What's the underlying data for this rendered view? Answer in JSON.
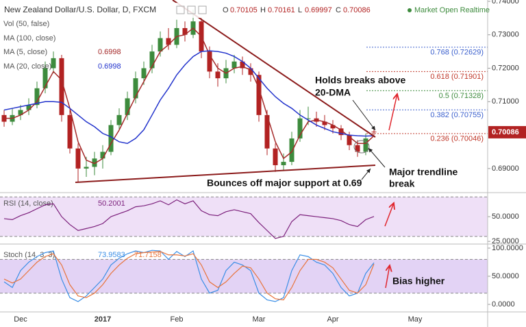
{
  "header": {
    "title": "New Zealand Dollar/U.S. Dollar, D, FXCM",
    "ohlc_labels": [
      "O",
      "H",
      "L",
      "C"
    ],
    "status": "Market Open Realtime"
  },
  "indicators": [
    "Vol (50, false)",
    "MA (100, close)"
  ],
  "chart_data": [
    {
      "type": "candlestick",
      "categories": [
        null,
        null,
        "Dec",
        null,
        null,
        null,
        null,
        null,
        null,
        null,
        null,
        null,
        "2017",
        null,
        null,
        null,
        null,
        null,
        null,
        null,
        null,
        "Feb",
        null,
        null,
        null,
        null,
        null,
        null,
        null,
        null,
        null,
        "Mar",
        null,
        null,
        null,
        null,
        null,
        null,
        null,
        null,
        "Apr",
        null,
        null,
        null,
        null,
        null,
        null,
        null,
        null,
        null,
        "May",
        null,
        null,
        null,
        null,
        null,
        null,
        null,
        null
      ],
      "open": [
        0.706,
        0.704,
        0.706,
        0.7075,
        0.709,
        0.714,
        0.72,
        0.723,
        0.706,
        0.696,
        0.69,
        0.6905,
        0.693,
        0.695,
        0.703,
        0.706,
        0.711,
        0.717,
        0.72,
        0.725,
        0.729,
        0.727,
        0.732,
        0.73,
        0.734,
        0.725,
        0.719,
        0.717,
        0.72,
        0.722,
        0.72,
        0.718,
        0.706,
        0.696,
        0.691,
        0.692,
        0.699,
        0.705,
        0.705,
        0.704,
        0.703,
        0.702,
        0.7,
        0.697,
        0.695,
        0.70105,
        null,
        null,
        null,
        null,
        null,
        null,
        null,
        null,
        null,
        null,
        null,
        null,
        null
      ],
      "high": [
        0.7075,
        0.708,
        0.709,
        0.711,
        0.716,
        0.722,
        0.725,
        0.724,
        0.7075,
        0.6975,
        0.6935,
        0.695,
        0.697,
        0.7045,
        0.708,
        0.713,
        0.719,
        0.722,
        0.727,
        0.731,
        0.732,
        0.7345,
        0.734,
        0.7375,
        0.735,
        0.7265,
        0.7215,
        0.7225,
        0.724,
        0.7235,
        0.7215,
        0.719,
        0.7075,
        0.6975,
        0.6945,
        0.701,
        0.7075,
        0.7085,
        0.707,
        0.706,
        0.7045,
        0.703,
        0.701,
        0.6985,
        0.7005,
        0.70161,
        null,
        null,
        null,
        null,
        null,
        null,
        null,
        null,
        null,
        null,
        null,
        null,
        null
      ],
      "low": [
        0.7025,
        0.703,
        0.7045,
        0.706,
        0.708,
        0.7125,
        0.7185,
        0.704,
        0.6945,
        0.686,
        0.6875,
        0.688,
        0.69,
        0.694,
        0.7015,
        0.7045,
        0.7095,
        0.715,
        0.7185,
        0.7235,
        0.7255,
        0.726,
        0.728,
        0.729,
        0.723,
        0.717,
        0.7145,
        0.7155,
        0.7185,
        0.718,
        0.716,
        0.704,
        0.694,
        0.689,
        0.6895,
        0.691,
        0.698,
        0.703,
        0.7025,
        0.7015,
        0.7005,
        0.6985,
        0.6955,
        0.6935,
        0.694,
        0.69997,
        null,
        null,
        null,
        null,
        null,
        null,
        null,
        null,
        null,
        null,
        null,
        null,
        null
      ],
      "close": [
        0.704,
        0.706,
        0.7075,
        0.709,
        0.714,
        0.72,
        0.723,
        0.706,
        0.696,
        0.69,
        0.6905,
        0.693,
        0.695,
        0.703,
        0.706,
        0.711,
        0.717,
        0.72,
        0.725,
        0.729,
        0.727,
        0.732,
        0.73,
        0.734,
        0.725,
        0.719,
        0.717,
        0.72,
        0.722,
        0.72,
        0.718,
        0.706,
        0.696,
        0.691,
        0.692,
        0.699,
        0.705,
        0.705,
        0.704,
        0.703,
        0.702,
        0.7,
        0.697,
        0.695,
        0.699,
        0.70086,
        null,
        null,
        null,
        null,
        null,
        null,
        null,
        null,
        null,
        null,
        null,
        null,
        null
      ],
      "up_color": "#3d8b3d",
      "down_color": "#b22222",
      "series": [
        {
          "name": "MA (5, close)",
          "color": "#a52a2a",
          "values": [
            0.705,
            0.705,
            0.706,
            0.7075,
            0.71,
            0.7145,
            0.719,
            0.7165,
            0.708,
            0.698,
            0.6925,
            0.6915,
            0.693,
            0.6975,
            0.7015,
            0.7065,
            0.7115,
            0.716,
            0.7205,
            0.725,
            0.727,
            0.7295,
            0.73,
            0.732,
            0.7295,
            0.724,
            0.72,
            0.7185,
            0.72,
            0.7205,
            0.7195,
            0.714,
            0.706,
            0.698,
            0.693,
            0.695,
            0.7,
            0.704,
            0.7045,
            0.704,
            0.703,
            0.7015,
            0.6995,
            0.6975,
            0.6975,
            0.6998,
            null,
            null,
            null,
            null,
            null,
            null,
            null,
            null,
            null,
            null,
            null,
            null,
            null
          ]
        },
        {
          "name": "MA (20, close)",
          "color": "#2233cc",
          "values": [
            0.7075,
            0.708,
            0.7085,
            0.709,
            0.7095,
            0.71,
            0.71,
            0.7098,
            0.708,
            0.706,
            0.704,
            0.7025,
            0.7005,
            0.6995,
            0.698,
            0.6975,
            0.699,
            0.7016,
            0.706,
            0.7105,
            0.714,
            0.718,
            0.721,
            0.7235,
            0.725,
            0.7252,
            0.725,
            0.7245,
            0.7235,
            0.722,
            0.72,
            0.717,
            0.714,
            0.7115,
            0.7095,
            0.708,
            0.706,
            0.7045,
            0.703,
            0.702,
            0.701,
            0.7005,
            0.7,
            0.6998,
            0.6997,
            0.6998,
            null,
            null,
            null,
            null,
            null,
            null,
            null,
            null,
            null,
            null,
            null,
            null,
            null
          ]
        }
      ],
      "ylim": [
        0.683,
        0.7404
      ],
      "yticks": [
        {
          "value": 0.69,
          "label": "0.69000"
        },
        {
          "value": 0.71,
          "label": "0.71000"
        },
        {
          "value": 0.72,
          "label": "0.72000"
        },
        {
          "value": 0.73,
          "label": "0.73000"
        },
        {
          "value": 0.74,
          "label": "0.74000"
        }
      ],
      "levels": [
        {
          "label": "0.768 (0.72629)",
          "value": 0.72629,
          "color": "#3a5fcd"
        },
        {
          "label": "0.618 (0.71901)",
          "value": 0.71901,
          "color": "#c0392b"
        },
        {
          "label": "0.5 (0.71328)",
          "value": 0.71328,
          "color": "#3d8b3d"
        },
        {
          "label": "0.382 (0.70755)",
          "value": 0.70755,
          "color": "#3a5fcd"
        },
        {
          "label": "0.236 (0.70046)",
          "value": 0.70046,
          "color": "#c0392b"
        }
      ]
    },
    {
      "type": "line",
      "title": "RSI (14, close)",
      "series": [
        {
          "color": "#7b1f7b",
          "values": [
            48,
            47,
            51,
            54,
            58,
            62,
            63,
            50,
            42,
            36,
            38,
            40,
            43,
            50,
            53,
            56,
            60,
            61,
            63,
            66,
            62,
            67,
            63,
            66,
            56,
            52,
            51,
            55,
            57,
            55,
            53,
            44,
            36,
            28,
            30,
            45,
            52,
            51,
            50,
            49,
            48,
            46,
            42,
            40,
            47,
            50.2001,
            null,
            null,
            null,
            null,
            null,
            null,
            null,
            null,
            null,
            null,
            null,
            null,
            null
          ]
        }
      ],
      "band": [
        30,
        70
      ],
      "band_color": "#efe0f7",
      "ylim": [
        23,
        73.6
      ],
      "yticks": [
        {
          "value": 25,
          "label": "25.0000"
        },
        {
          "value": 50,
          "label": "50.0000"
        }
      ]
    },
    {
      "type": "line",
      "title": "Stoch (14, 3, 3)",
      "series": [
        {
          "color": "#3a8ee6",
          "values": [
            40,
            30,
            60,
            75,
            85,
            92,
            95,
            45,
            12,
            5,
            15,
            30,
            45,
            70,
            82,
            90,
            95,
            92,
            96,
            95,
            80,
            94,
            85,
            95,
            45,
            20,
            25,
            60,
            75,
            70,
            60,
            20,
            8,
            5,
            12,
            60,
            88,
            85,
            75,
            70,
            55,
            30,
            15,
            20,
            55,
            73.9583,
            null,
            null,
            null,
            null,
            null,
            null,
            null,
            null,
            null,
            null,
            null,
            null,
            null
          ]
        },
        {
          "color": "#e8743b",
          "values": [
            45,
            38,
            45,
            60,
            75,
            85,
            90,
            70,
            35,
            15,
            12,
            20,
            35,
            55,
            70,
            82,
            90,
            92,
            93,
            94,
            88,
            88,
            86,
            90,
            70,
            40,
            30,
            40,
            55,
            68,
            65,
            45,
            20,
            10,
            8,
            30,
            60,
            80,
            80,
            75,
            65,
            45,
            25,
            20,
            35,
            71.7158,
            null,
            null,
            null,
            null,
            null,
            null,
            null,
            null,
            null,
            null,
            null,
            null,
            null
          ]
        }
      ],
      "band": [
        20,
        80
      ],
      "band_color": "#e3d3f5",
      "ylim": [
        -13.4,
        106
      ],
      "yticks": [
        {
          "value": 0,
          "label": "0.0000"
        },
        {
          "value": 50,
          "label": "50.0000"
        },
        {
          "value": 100,
          "label": "100.0000"
        }
      ]
    }
  ],
  "annotations": [
    {
      "lines": [
        "Holds breaks above",
        "20-DMA"
      ]
    },
    {
      "lines": [
        "Major trendline",
        "break"
      ]
    },
    {
      "lines": [
        "Bounces off major support at 0.69"
      ]
    },
    {
      "lines": [
        "Bias higher"
      ]
    }
  ]
}
